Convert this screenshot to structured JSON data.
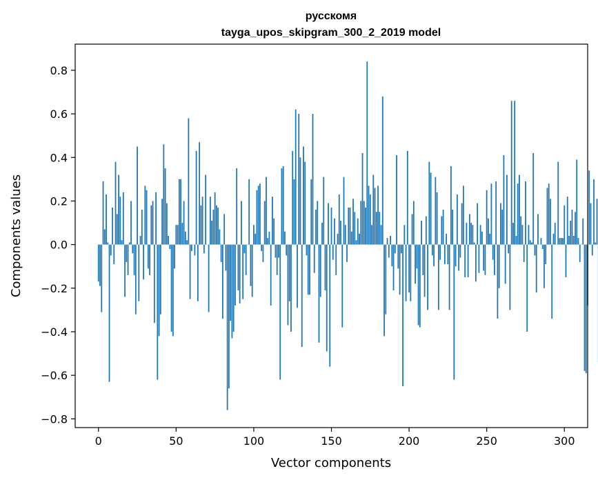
{
  "chart_data": {
    "type": "bar",
    "title_line1": "русскомя",
    "title_line2": "tayga_upos_skipgram_300_2_2019 model",
    "xlabel": "Vector components",
    "ylabel": "Components values",
    "xlim": [
      -15,
      315
    ],
    "ylim": [
      -0.84,
      0.92
    ],
    "xticks": [
      0,
      50,
      100,
      150,
      200,
      250,
      300
    ],
    "xtick_labels": [
      "0",
      "50",
      "100",
      "150",
      "200",
      "250",
      "300"
    ],
    "yticks": [
      -0.8,
      -0.6,
      -0.4,
      -0.2,
      0.0,
      0.2,
      0.4,
      0.6,
      0.8
    ],
    "ytick_labels": [
      "−0.8",
      "−0.6",
      "−0.4",
      "−0.2",
      "0.0",
      "0.2",
      "0.4",
      "0.6",
      "0.8"
    ],
    "grid": false,
    "bar_color": "#1f77b4",
    "values": [
      -0.17,
      -0.19,
      -0.31,
      0.29,
      0.07,
      0.23,
      0.01,
      -0.63,
      -0.05,
      0.17,
      -0.09,
      0.38,
      0.14,
      0.32,
      0.22,
      0.02,
      0.24,
      -0.24,
      -0.08,
      -0.14,
      0.01,
      0.2,
      -0.04,
      -0.14,
      -0.32,
      0.45,
      -0.26,
      0.04,
      0.16,
      -0.16,
      0.27,
      0.25,
      -0.11,
      -0.14,
      0.18,
      0.2,
      -0.36,
      0.24,
      -0.62,
      -0.42,
      -0.32,
      0.21,
      0.46,
      0.35,
      0.19,
      0.04,
      -0.02,
      -0.4,
      -0.42,
      -0.11,
      0.09,
      0.09,
      0.3,
      0.3,
      0.1,
      0.2,
      0.06,
      0.02,
      0.58,
      -0.25,
      -0.03,
      0.0,
      -0.05,
      0.43,
      -0.26,
      0.47,
      0.18,
      0.22,
      -0.04,
      0.32,
      0.0,
      -0.31,
      0.22,
      0.11,
      0.16,
      0.24,
      0.18,
      0.17,
      0.07,
      -0.08,
      -0.34,
      0.14,
      -0.12,
      -0.76,
      -0.66,
      -0.35,
      -0.43,
      -0.4,
      -0.28,
      0.35,
      -0.21,
      -0.27,
      0.2,
      -0.25,
      -0.04,
      -0.14,
      0.0,
      0.3,
      -0.19,
      -0.24,
      0.09,
      0.05,
      0.25,
      0.27,
      0.28,
      -0.03,
      -0.08,
      0.2,
      0.31,
      0.03,
      0.06,
      -0.28,
      0.22,
      0.12,
      -0.06,
      -0.14,
      -0.06,
      -0.62,
      0.35,
      0.36,
      0.06,
      -0.05,
      -0.37,
      -0.26,
      -0.4,
      0.43,
      0.3,
      0.62,
      -0.29,
      0.6,
      0.4,
      -0.47,
      0.45,
      0.38,
      -0.05,
      -0.23,
      -0.23,
      0.3,
      0.6,
      -0.13,
      0.16,
      0.2,
      -0.45,
      -0.24,
      0.1,
      0.31,
      -0.21,
      -0.49,
      0.19,
      -0.56,
      0.17,
      -0.07,
      0.12,
      -0.14,
      0.05,
      0.23,
      0.11,
      -0.38,
      0.31,
      0.09,
      -0.08,
      0.17,
      0.17,
      0.06,
      0.21,
      0.15,
      0.02,
      0.12,
      0.05,
      0.2,
      0.42,
      0.2,
      0.17,
      0.84,
      0.27,
      0.23,
      0.09,
      0.32,
      0.26,
      0.15,
      0.27,
      0.15,
      0.09,
      0.68,
      -0.42,
      -0.32,
      0.03,
      -0.06,
      0.04,
      -0.1,
      -0.21,
      -0.04,
      0.41,
      -0.11,
      -0.23,
      -0.04,
      -0.65,
      0.09,
      -0.26,
      0.43,
      -0.22,
      -0.26,
      0.14,
      0.2,
      -0.18,
      -0.11,
      -0.37,
      -0.38,
      0.11,
      -0.14,
      -0.24,
      0.13,
      -0.3,
      0.38,
      0.33,
      -0.05,
      -0.1,
      0.31,
      0.24,
      -0.3,
      -0.07,
      0.13,
      0.16,
      -0.09,
      0.05,
      -0.09,
      -0.3,
      0.36,
      0.16,
      -0.62,
      -0.1,
      0.23,
      -0.12,
      -0.06,
      0.19,
      0.27,
      -0.15,
      0.1,
      -0.15,
      0.14,
      0.1,
      0.09,
      0.01,
      -0.17,
      0.19,
      -0.13,
      0.09,
      0.06,
      -0.12,
      -0.14,
      0.25,
      0.12,
      0.05,
      0.28,
      -0.07,
      -0.14,
      0.29,
      -0.34,
      -0.2,
      0.19,
      0.16,
      0.41,
      -0.18,
      0.32,
      -0.04,
      -0.3,
      0.66,
      0.1,
      0.66,
      0.04,
      0.28,
      0.32,
      0.13,
      0.09,
      -0.08,
      0.29,
      -0.4,
      0.09,
      0.02,
      0.01,
      0.42,
      -0.05,
      -0.22,
      0.14,
      0.0,
      0.03,
      -0.02,
      -0.2,
      -0.09,
      0.26,
      0.28,
      0.21,
      -0.34,
      0.05,
      0.1,
      0.0,
      0.38,
      0.03,
      0.03,
      0.03,
      0.18,
      -0.15,
      0.22,
      0.04,
      0.11,
      0.16,
      0.04,
      0.15,
      0.39,
      0.03,
      -0.08,
      0.0,
      0.12,
      -0.58,
      -0.59,
      -0.28,
      0.34,
      0.19,
      -0.05,
      0.3,
      0.01,
      0.21,
      -0.54,
      0.0
    ]
  }
}
